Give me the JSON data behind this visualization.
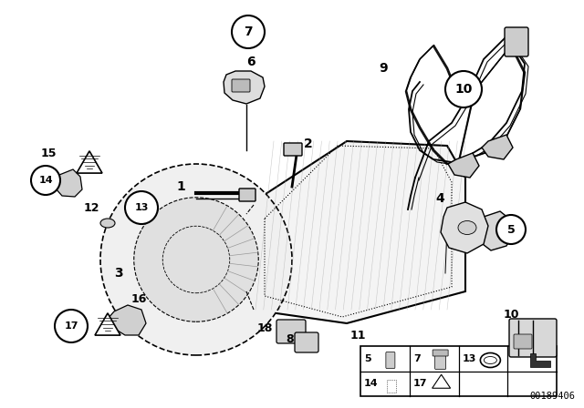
{
  "bg_color": "#ffffff",
  "line_color": "#000000",
  "part_number": "00189406",
  "fig_width": 6.4,
  "fig_height": 4.48,
  "dpi": 100
}
